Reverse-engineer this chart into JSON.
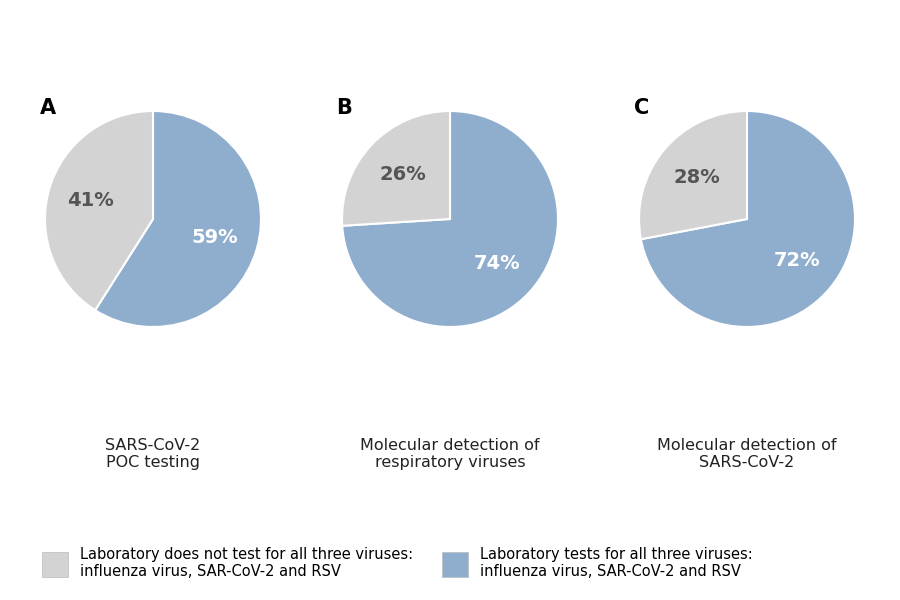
{
  "charts": [
    {
      "label": "A",
      "title": "SARS-CoV-2\nPOC testing",
      "slices": [
        59,
        41
      ],
      "start_angle": 90
    },
    {
      "label": "B",
      "title": "Molecular detection of\nrespiratory viruses",
      "slices": [
        74,
        26
      ],
      "start_angle": 90
    },
    {
      "label": "C",
      "title": "Molecular detection of\nSARS-CoV-2",
      "slices": [
        72,
        28
      ],
      "start_angle": 90
    }
  ],
  "colors": [
    "#8faece",
    "#d3d3d3"
  ],
  "text_colors": [
    "white",
    "#555555"
  ],
  "pct_labels": [
    [
      "59%",
      "41%"
    ],
    [
      "74%",
      "26%"
    ],
    [
      "72%",
      "28%"
    ]
  ],
  "legend": [
    {
      "color": "#d3d3d3",
      "text": "Laboratory does not test for all three viruses:\ninfluenza virus, SAR-CoV-2 and RSV"
    },
    {
      "color": "#8faece",
      "text": "Laboratory tests for all three viruses:\ninfluenza virus, SAR-CoV-2 and RSV"
    }
  ],
  "background_color": "#ffffff",
  "label_fontsize": 15,
  "title_fontsize": 11.5,
  "pct_fontsize": 14,
  "legend_fontsize": 10.5
}
